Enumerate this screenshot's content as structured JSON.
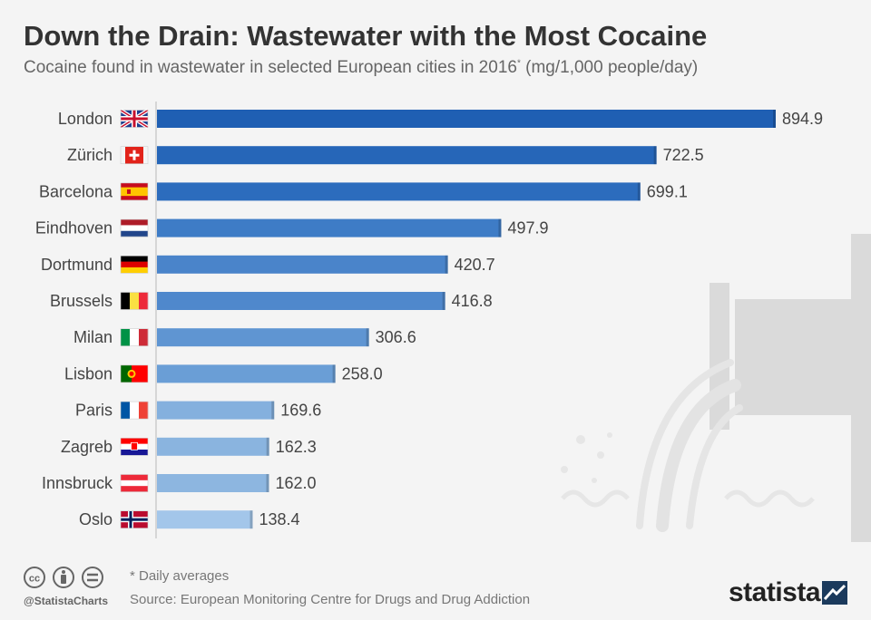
{
  "header": {
    "title": "Down the Drain: Wastewater with the Most Cocaine",
    "subtitle": "Cocaine found in wastewater in selected European cities in 2016",
    "subtitle_mark": "*",
    "subtitle_unit": "(mg/1,000 people/day)"
  },
  "chart_data": {
    "type": "bar",
    "orientation": "horizontal",
    "categories": [
      "London",
      "Zürich",
      "Barcelona",
      "Eindhoven",
      "Dortmund",
      "Brussels",
      "Milan",
      "Lisbon",
      "Paris",
      "Zagreb",
      "Innsbruck",
      "Oslo"
    ],
    "values": [
      894.9,
      722.5,
      699.1,
      497.9,
      420.7,
      416.8,
      306.6,
      258.0,
      169.6,
      162.3,
      162.0,
      138.4
    ],
    "value_labels": [
      "894.9",
      "722.5",
      "699.1",
      "497.9",
      "420.7",
      "416.8",
      "306.6",
      "258.0",
      "169.6",
      "162.3",
      "162.0",
      "138.4"
    ],
    "flags": [
      "uk-flag-icon",
      "switzerland-flag-icon",
      "spain-flag-icon",
      "netherlands-flag-icon",
      "germany-flag-icon",
      "belgium-flag-icon",
      "italy-flag-icon",
      "portugal-flag-icon",
      "france-flag-icon",
      "croatia-flag-icon",
      "austria-flag-icon",
      "norway-flag-icon"
    ],
    "bar_colors": [
      "#1f5fb3",
      "#2666b8",
      "#2c6cbd",
      "#3e7cc6",
      "#4a84ca",
      "#4f88cc",
      "#5f95d2",
      "#6a9ed6",
      "#84b0de",
      "#8ab4df",
      "#8db6e0",
      "#a3c6ea"
    ],
    "xlim": [
      0,
      900
    ],
    "grid": false,
    "legend": "none"
  },
  "footer": {
    "note": "* Daily averages",
    "source": "Source: European Monitoring Centre for Drugs and Drug Addiction",
    "handle": "@StatistaCharts",
    "brand": "statista"
  },
  "colors": {
    "title": "#333333",
    "axis": "#cccccc",
    "label": "#444444",
    "decoration": "#dadada"
  }
}
